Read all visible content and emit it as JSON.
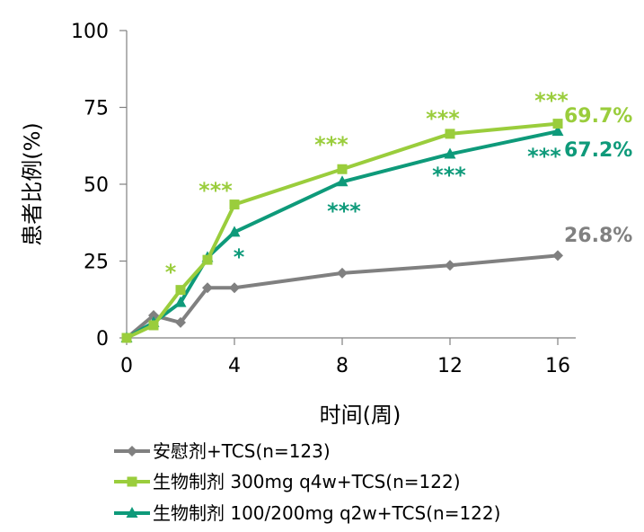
{
  "chart_data": {
    "type": "line",
    "xlabel": "时间(周)",
    "ylabel": "患者比例(%)",
    "x_ticks": [
      0,
      4,
      8,
      12,
      16
    ],
    "y_ticks": [
      0,
      25,
      50,
      75,
      100
    ],
    "xlim": [
      0,
      16
    ],
    "ylim": [
      0,
      100
    ],
    "legend_position": "bottom-left",
    "series": [
      {
        "name": "安慰剂+TCS(n=123)",
        "color": "#808080",
        "marker": "diamond",
        "x": [
          0,
          1,
          2,
          3,
          4,
          8,
          12,
          16
        ],
        "y": [
          0,
          7.3,
          5,
          16.3,
          16.3,
          21.1,
          23.6,
          26.8
        ],
        "end_label": "26.8%",
        "significance": []
      },
      {
        "name": "生物制剂 300mg q4w+TCS(n=122)",
        "color": "#9ACD3C",
        "marker": "square",
        "x": [
          0,
          1,
          2,
          3,
          4,
          8,
          12,
          16
        ],
        "y": [
          0,
          4.1,
          15.6,
          25.4,
          43.4,
          54.9,
          66.4,
          69.7
        ],
        "end_label": "69.7%",
        "significance": [
          {
            "x": 2,
            "text": "*"
          },
          {
            "x": 4,
            "text": "***"
          },
          {
            "x": 8,
            "text": "***"
          },
          {
            "x": 12,
            "text": "***"
          },
          {
            "x": 16,
            "text": "***"
          }
        ]
      },
      {
        "name": "生物制剂 100/200mg q2w+TCS(n=122)",
        "color": "#0E9A7A",
        "marker": "triangle",
        "x": [
          0,
          1,
          2,
          3,
          4,
          8,
          12,
          16
        ],
        "y": [
          0,
          5,
          11.5,
          26.2,
          34.4,
          50.8,
          59.8,
          67.2
        ],
        "end_label": "67.2%",
        "significance": [
          {
            "x": 4,
            "text": "*"
          },
          {
            "x": 8,
            "text": "***"
          },
          {
            "x": 12,
            "text": "***"
          },
          {
            "x": 16,
            "text": "***"
          }
        ]
      }
    ]
  }
}
